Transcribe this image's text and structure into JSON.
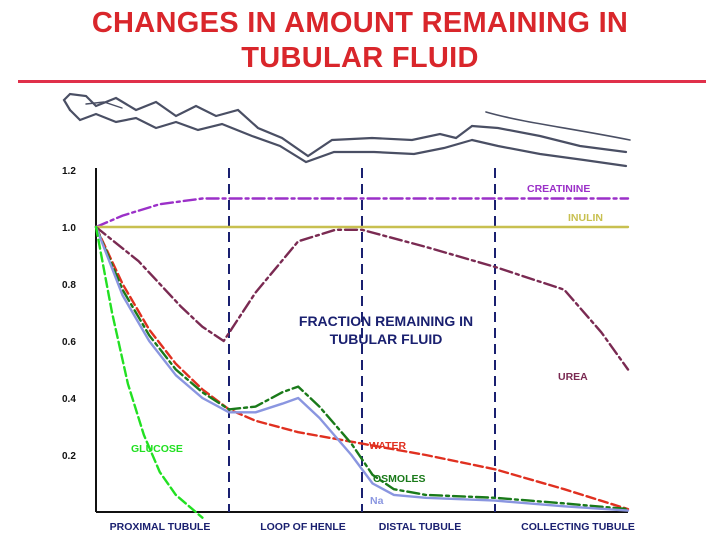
{
  "title_line1": "CHANGES IN AMOUNT REMAINING IN",
  "title_line2": "TUBULAR FLUID",
  "chart_data": {
    "type": "line",
    "annotation": "FRACTION REMAINING IN TUBULAR FLUID",
    "annotation_lines": [
      "FRACTION REMAINING IN",
      "TUBULAR FLUID"
    ],
    "xlim": [
      0,
      100
    ],
    "ylim": [
      0,
      1.2
    ],
    "ytick_labels": [
      "1.2",
      "1.0",
      "0.8",
      "0.6",
      "0.4",
      "0.2"
    ],
    "ytick_values": [
      1.2,
      1.0,
      0.8,
      0.6,
      0.4,
      0.2
    ],
    "segments": [
      {
        "label": "PROXIMAL TUBULE",
        "x_center": 10
      },
      {
        "label": "LOOP OF HENLE",
        "x_center": 40
      },
      {
        "label": "DISTAL TUBULE",
        "x_center": 65
      },
      {
        "label": "COLLECTING TUBULE",
        "x_center": 88
      }
    ],
    "boundaries": [
      25,
      50,
      75
    ],
    "series": [
      {
        "name": "CREATININE",
        "color": "#9b30c8",
        "dash": "dashdot",
        "x": [
          0,
          5,
          12,
          20,
          25,
          40,
          60,
          80,
          100
        ],
        "y": [
          1.0,
          1.04,
          1.08,
          1.1,
          1.1,
          1.1,
          1.1,
          1.1,
          1.1
        ]
      },
      {
        "name": "INULIN",
        "color": "#c8c050",
        "dash": "solid",
        "x": [
          0,
          25,
          50,
          75,
          100
        ],
        "y": [
          1.0,
          1.0,
          1.0,
          1.0,
          1.0
        ]
      },
      {
        "name": "UREA",
        "color": "#7a2a52",
        "dash": "dashdot",
        "x": [
          0,
          8,
          16,
          20,
          24,
          30,
          38,
          45,
          50,
          62,
          75,
          88,
          95,
          100
        ],
        "y": [
          1.0,
          0.88,
          0.72,
          0.65,
          0.6,
          0.77,
          0.95,
          0.99,
          0.99,
          0.93,
          0.86,
          0.78,
          0.63,
          0.5
        ]
      },
      {
        "name": "WATER",
        "color": "#e03020",
        "dash": "dashed",
        "x": [
          0,
          5,
          10,
          15,
          20,
          25,
          30,
          38,
          50,
          62,
          75,
          88,
          100
        ],
        "y": [
          1.0,
          0.8,
          0.64,
          0.52,
          0.43,
          0.36,
          0.32,
          0.28,
          0.24,
          0.2,
          0.15,
          0.08,
          0.01
        ]
      },
      {
        "name": "OSMOLES",
        "color": "#1a7a1a",
        "dash": "dashdot",
        "x": [
          0,
          5,
          10,
          15,
          20,
          25,
          30,
          35,
          38,
          42,
          48,
          52,
          56,
          62,
          75,
          88,
          100
        ],
        "y": [
          1.0,
          0.78,
          0.62,
          0.5,
          0.42,
          0.36,
          0.37,
          0.42,
          0.44,
          0.37,
          0.24,
          0.13,
          0.08,
          0.06,
          0.05,
          0.03,
          0.01
        ]
      },
      {
        "name": "Na",
        "color": "#8a96e0",
        "dash": "solid",
        "x": [
          0,
          5,
          10,
          15,
          20,
          25,
          30,
          35,
          38,
          42,
          48,
          52,
          56,
          62,
          75,
          88,
          100
        ],
        "y": [
          1.0,
          0.76,
          0.6,
          0.48,
          0.4,
          0.35,
          0.35,
          0.38,
          0.4,
          0.33,
          0.2,
          0.1,
          0.06,
          0.05,
          0.04,
          0.02,
          0.005
        ]
      },
      {
        "name": "GLUCOSE",
        "color": "#22e022",
        "dash": "dashed",
        "x": [
          0,
          3,
          6,
          9,
          12,
          15,
          20
        ],
        "y": [
          1.0,
          0.7,
          0.45,
          0.27,
          0.14,
          0.06,
          -0.02
        ]
      }
    ]
  }
}
